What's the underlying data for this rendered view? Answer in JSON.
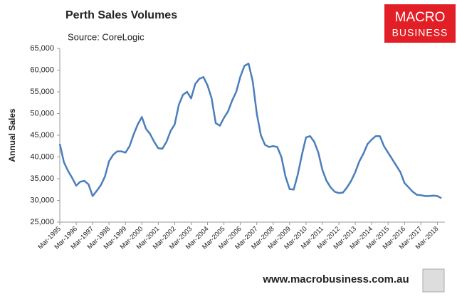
{
  "chart_data": {
    "type": "line",
    "title": "Perth Sales Volumes",
    "subtitle": "Source: CoreLogic",
    "y_label": "Annual Sales",
    "categories": [
      "Mar-1995",
      null,
      null,
      null,
      "Mar-1996",
      null,
      null,
      null,
      "Mar-1997",
      null,
      null,
      null,
      "Mar-1998",
      null,
      null,
      null,
      "Mar-1999",
      null,
      null,
      null,
      "Mar-2000",
      null,
      null,
      null,
      "Mar-2001",
      null,
      null,
      null,
      "Mar-2002",
      null,
      null,
      null,
      "Mar-2003",
      null,
      null,
      null,
      "Mar-2004",
      null,
      null,
      null,
      "Mar-2005",
      null,
      null,
      null,
      "Mar-2006",
      null,
      null,
      null,
      "Mar-2007",
      null,
      null,
      null,
      "Mar-2008",
      null,
      null,
      null,
      "Mar-2009",
      null,
      null,
      null,
      "Mar-2010",
      null,
      null,
      null,
      "Mar-2011",
      null,
      null,
      null,
      "Mar-2012",
      null,
      null,
      null,
      "Mar-2013",
      null,
      null,
      null,
      "Mar-2014",
      null,
      null,
      null,
      "Mar-2015",
      null,
      null,
      null,
      "Mar-2016",
      null,
      null,
      null,
      "Mar-2017",
      null,
      null,
      null,
      "Mar-2018",
      null
    ],
    "series": [
      {
        "name": "Annual Sales",
        "color": "#4a7ebb",
        "values": [
          43000,
          38800,
          36800,
          35200,
          33400,
          34300,
          34500,
          33700,
          31000,
          32200,
          33500,
          35500,
          39000,
          40500,
          41300,
          41300,
          41000,
          42500,
          45200,
          47500,
          49200,
          46500,
          45300,
          43500,
          42000,
          41900,
          43500,
          46000,
          47500,
          52000,
          54300,
          55000,
          53500,
          56800,
          58000,
          58400,
          56500,
          53500,
          47800,
          47200,
          49000,
          50500,
          53000,
          55000,
          58500,
          61000,
          61500,
          57500,
          50000,
          45000,
          42800,
          42300,
          42500,
          42300,
          40000,
          35500,
          32600,
          32500,
          36000,
          40500,
          44500,
          44800,
          43500,
          41000,
          37000,
          34500,
          33000,
          32000,
          31700,
          31800,
          33000,
          34500,
          36500,
          39000,
          40800,
          43000,
          44000,
          44800,
          44800,
          42500,
          41000,
          39500,
          38000,
          36500,
          34000,
          33000,
          32000,
          31300,
          31200,
          31000,
          31000,
          31100,
          31000,
          30500
        ]
      }
    ],
    "ylim": [
      25000,
      65000
    ],
    "yticks": [
      {
        "value": 25000,
        "label": "25,000"
      },
      {
        "value": 30000,
        "label": "30,000"
      },
      {
        "value": 35000,
        "label": "35,000"
      },
      {
        "value": 40000,
        "label": "40,000"
      },
      {
        "value": 45000,
        "label": "45,000"
      },
      {
        "value": 50000,
        "label": "50,000"
      },
      {
        "value": 55000,
        "label": "55,000"
      },
      {
        "value": 60000,
        "label": "60,000"
      },
      {
        "value": 65000,
        "label": "65,000"
      }
    ],
    "grid": false,
    "legend": false
  },
  "logo": {
    "line1": "MACRO",
    "line2": "BUSINESS"
  },
  "footer": "www.macrobusiness.com.au"
}
